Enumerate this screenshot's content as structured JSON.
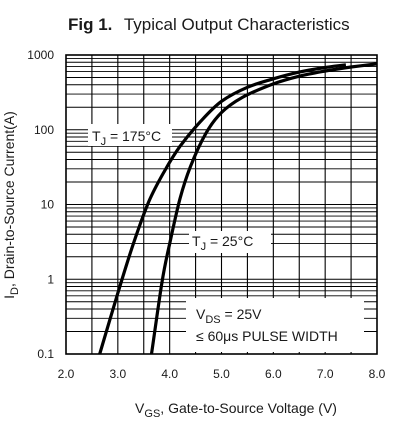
{
  "title": {
    "fig": "Fig 1.",
    "text": "Typical Output Characteristics"
  },
  "chart_data": {
    "type": "line",
    "title": "Fig 1. Typical Output Characteristics",
    "xlabel_main": "V",
    "xlabel_sub": "GS",
    "xlabel_rest": ", Gate-to-Source Voltage (V)",
    "ylabel_main": "I",
    "ylabel_sub": "D",
    "ylabel_rest": ", Drain-to-Source Current(A)",
    "xlim": [
      2.0,
      8.0
    ],
    "ylim": [
      0.1,
      1000
    ],
    "yscale": "log",
    "x_ticks": [
      "2.0",
      "3.0",
      "4.0",
      "5.0",
      "6.0",
      "7.0",
      "8.0"
    ],
    "y_ticks": [
      "0.1",
      "1",
      "10",
      "100",
      "1000"
    ],
    "grid": true,
    "series": [
      {
        "name_main": "T",
        "name_sub": "J",
        "name_rest": " = 175°C",
        "x": [
          2.65,
          3.0,
          3.3,
          3.6,
          3.9,
          4.2,
          4.6,
          5.0,
          5.5,
          6.0,
          6.5,
          7.0,
          7.4
        ],
        "y": [
          0.1,
          0.65,
          3.0,
          11,
          28,
          60,
          130,
          240,
          370,
          480,
          590,
          680,
          740
        ]
      },
      {
        "name_main": "T",
        "name_sub": "J",
        "name_rest": " = 25°C",
        "x": [
          3.65,
          3.85,
          4.0,
          4.2,
          4.4,
          4.7,
          5.0,
          5.4,
          6.0,
          6.5,
          7.0,
          7.5,
          8.0
        ],
        "y": [
          0.1,
          0.9,
          3.0,
          12,
          32,
          90,
          170,
          270,
          410,
          520,
          610,
          690,
          760
        ]
      }
    ],
    "annotation": {
      "line1_main": "V",
      "line1_sub": "DS",
      "line1_rest": " = 25V",
      "line2": "≤ 60μs PULSE WIDTH"
    }
  }
}
